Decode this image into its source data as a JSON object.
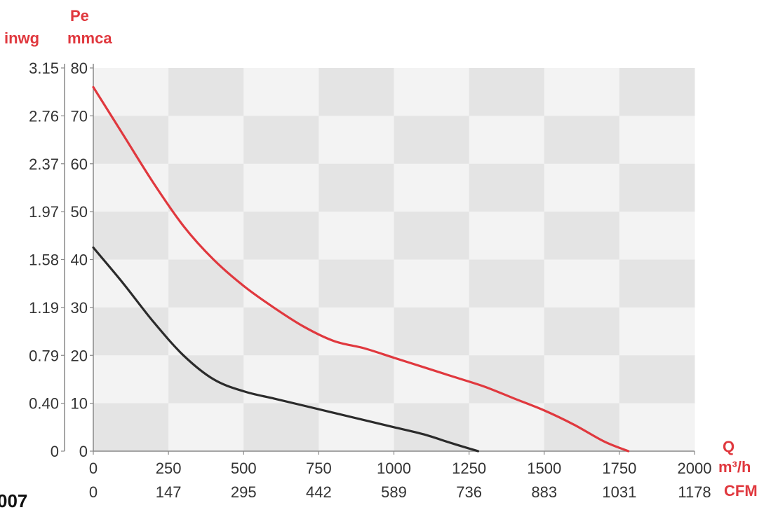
{
  "chart_data": {
    "type": "line",
    "y_unit_left": "inwg",
    "y_unit_right": "mmca",
    "y_quantity": "Pe",
    "x_quantity": "Q",
    "x_unit_primary": "m³/h",
    "x_unit_secondary": "CFM",
    "x_ticks_primary": [
      "0",
      "250",
      "500",
      "750",
      "1000",
      "1250",
      "1500",
      "1750",
      "2000"
    ],
    "x_ticks_secondary": [
      "0",
      "147",
      "295",
      "442",
      "589",
      "736",
      "883",
      "1031",
      "1178"
    ],
    "y_ticks_mmca": [
      "0",
      "10",
      "20",
      "30",
      "40",
      "50",
      "60",
      "70",
      "80"
    ],
    "y_ticks_inwg": [
      "0",
      "0.40",
      "0.79",
      "1.19",
      "1.58",
      "1.97",
      "2.37",
      "2.76",
      "3.15"
    ],
    "xlim": [
      0,
      2000
    ],
    "ylim": [
      0,
      80
    ],
    "grid": true,
    "series": [
      {
        "color": "#e0383e",
        "points": [
          [
            0,
            76
          ],
          [
            100,
            66
          ],
          [
            200,
            56
          ],
          [
            300,
            47
          ],
          [
            400,
            40
          ],
          [
            500,
            34.5
          ],
          [
            600,
            30
          ],
          [
            700,
            26
          ],
          [
            800,
            23
          ],
          [
            900,
            21.5
          ],
          [
            1000,
            19.5
          ],
          [
            1100,
            17.5
          ],
          [
            1200,
            15.5
          ],
          [
            1300,
            13.5
          ],
          [
            1400,
            11
          ],
          [
            1500,
            8.5
          ],
          [
            1600,
            5.5
          ],
          [
            1700,
            2
          ],
          [
            1780,
            0
          ]
        ]
      },
      {
        "color": "#2b2b2b",
        "points": [
          [
            0,
            42.5
          ],
          [
            100,
            35
          ],
          [
            200,
            27
          ],
          [
            300,
            20
          ],
          [
            400,
            15
          ],
          [
            500,
            12.5
          ],
          [
            600,
            11
          ],
          [
            700,
            9.5
          ],
          [
            800,
            8
          ],
          [
            900,
            6.5
          ],
          [
            1000,
            5
          ],
          [
            1100,
            3.5
          ],
          [
            1200,
            1.5
          ],
          [
            1280,
            0
          ]
        ]
      }
    ]
  },
  "side_label": "007",
  "colors": {
    "red": "#e0383e",
    "axis": "#888888",
    "band_light": "#f3f3f3",
    "band_dark": "#e4e4e4"
  }
}
